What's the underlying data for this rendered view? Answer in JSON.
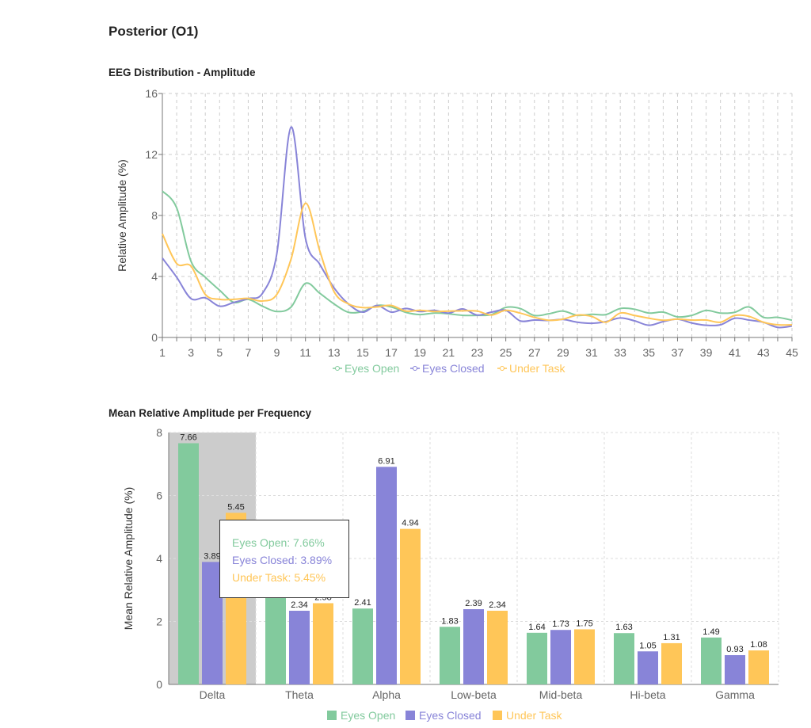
{
  "page_title": "Posterior (O1)",
  "colors": {
    "eyes_open": "#82ca9d",
    "eyes_closed": "#8884d8",
    "under_task": "#ffc658",
    "highlight": "#cccccc"
  },
  "chart_data": [
    {
      "type": "line",
      "title": "EEG Distribution - Amplitude",
      "xlabel": "",
      "ylabel": "Relative Amplitude (%)",
      "ylim": [
        0,
        16
      ],
      "yticks": [
        "0",
        "4",
        "8",
        "12",
        "16"
      ],
      "xlim": [
        1,
        45
      ],
      "xticks": [
        "1",
        "3",
        "5",
        "7",
        "9",
        "11",
        "13",
        "15",
        "17",
        "19",
        "21",
        "23",
        "25",
        "27",
        "29",
        "31",
        "33",
        "35",
        "37",
        "39",
        "41",
        "43",
        "45"
      ],
      "grid": true,
      "legend": "bottom",
      "x": [
        1,
        2,
        3,
        4,
        5,
        6,
        7,
        8,
        9,
        10,
        11,
        12,
        13,
        14,
        15,
        16,
        17,
        18,
        19,
        20,
        21,
        22,
        23,
        24,
        25,
        26,
        27,
        28,
        29,
        30,
        31,
        32,
        33,
        34,
        35,
        36,
        37,
        38,
        39,
        40,
        41,
        42,
        43,
        44,
        45
      ],
      "series": [
        {
          "name": "Eyes Open",
          "values": [
            9.6,
            8.5,
            5.0,
            3.95,
            3.1,
            2.3,
            2.5,
            2.05,
            1.7,
            2.0,
            3.55,
            2.9,
            2.2,
            1.65,
            1.7,
            2.1,
            2.0,
            1.65,
            1.5,
            1.6,
            1.55,
            1.45,
            1.45,
            1.5,
            1.97,
            1.9,
            1.44,
            1.55,
            1.73,
            1.45,
            1.52,
            1.5,
            1.9,
            1.85,
            1.6,
            1.66,
            1.35,
            1.45,
            1.77,
            1.6,
            1.65,
            2.0,
            1.32,
            1.32,
            1.13
          ]
        },
        {
          "name": "Eyes Closed",
          "values": [
            5.2,
            3.95,
            2.55,
            2.6,
            2.05,
            2.3,
            2.55,
            2.9,
            5.5,
            13.8,
            6.5,
            4.8,
            3.25,
            2.2,
            1.66,
            2.1,
            1.66,
            1.9,
            1.7,
            1.78,
            1.6,
            1.87,
            1.47,
            1.66,
            1.78,
            1.09,
            1.14,
            1.12,
            1.18,
            1.0,
            0.93,
            1.04,
            1.28,
            1.09,
            0.8,
            1.04,
            1.2,
            0.95,
            0.8,
            0.83,
            1.26,
            1.14,
            1.0,
            0.66,
            0.75
          ]
        },
        {
          "name": "Under Task",
          "values": [
            6.8,
            4.85,
            4.68,
            2.82,
            2.5,
            2.5,
            2.56,
            2.39,
            2.82,
            5.16,
            8.8,
            5.68,
            3.0,
            2.2,
            1.96,
            2.0,
            2.1,
            1.73,
            1.78,
            1.7,
            1.73,
            1.75,
            1.73,
            1.47,
            1.78,
            1.6,
            1.32,
            1.13,
            1.2,
            1.47,
            1.38,
            1.0,
            1.6,
            1.44,
            1.26,
            1.13,
            1.2,
            1.14,
            1.14,
            1.0,
            1.44,
            1.38,
            1.0,
            0.83,
            0.83
          ]
        }
      ]
    },
    {
      "type": "bar",
      "title": "Mean Relative Amplitude per Frequency",
      "xlabel": "",
      "ylabel": "Mean Relative Amplitude (%)",
      "ylim": [
        0,
        8
      ],
      "yticks": [
        "0",
        "2",
        "4",
        "6",
        "8"
      ],
      "grid": true,
      "legend": "bottom",
      "categories": [
        "Delta",
        "Theta",
        "Alpha",
        "Low-beta",
        "Mid-beta",
        "Hi-beta",
        "Gamma"
      ],
      "highlighted_category": "Delta",
      "series": [
        {
          "name": "Eyes Open",
          "values": [
            7.66,
            2.95,
            2.41,
            1.83,
            1.64,
            1.63,
            1.49
          ]
        },
        {
          "name": "Eyes Closed",
          "values": [
            3.89,
            2.34,
            6.91,
            2.39,
            1.73,
            1.05,
            0.93
          ]
        },
        {
          "name": "Under Task",
          "values": [
            5.45,
            2.58,
            4.94,
            2.34,
            1.75,
            1.31,
            1.08
          ]
        }
      ],
      "tooltip": {
        "lines": [
          "Eyes Open: 7.66%",
          "Eyes Closed: 3.89%",
          "Under Task: 5.45%"
        ]
      }
    }
  ]
}
